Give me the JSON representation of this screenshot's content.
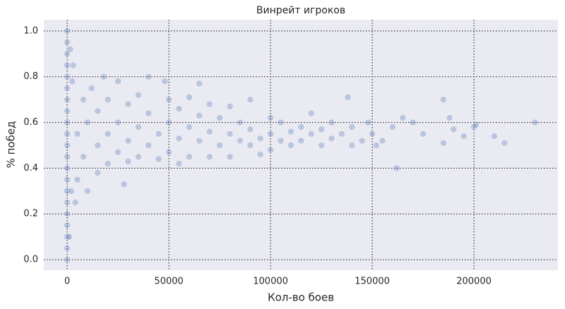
{
  "chart_data": {
    "type": "scatter",
    "title": "Винрейт игроков",
    "xlabel": "Кол-во боев",
    "ylabel": "% побед",
    "x": [
      0,
      0,
      0,
      0,
      0,
      0,
      0,
      0,
      0,
      0,
      0,
      0,
      0,
      0,
      0,
      0,
      0,
      0,
      0,
      0,
      0,
      1000,
      2000,
      3000,
      1500,
      4000,
      2500,
      5000,
      5000,
      8000,
      8000,
      10000,
      10000,
      12000,
      15000,
      15000,
      15000,
      18000,
      20000,
      20000,
      20000,
      25000,
      25000,
      25000,
      28000,
      30000,
      30000,
      30000,
      35000,
      35000,
      35000,
      40000,
      40000,
      40000,
      45000,
      45000,
      48000,
      50000,
      50000,
      50000,
      55000,
      55000,
      55000,
      60000,
      60000,
      60000,
      65000,
      65000,
      65000,
      70000,
      70000,
      70000,
      75000,
      75000,
      80000,
      80000,
      80000,
      85000,
      85000,
      90000,
      90000,
      90000,
      95000,
      95000,
      100000,
      100000,
      100000,
      105000,
      105000,
      110000,
      110000,
      115000,
      115000,
      120000,
      120000,
      125000,
      125000,
      130000,
      130000,
      135000,
      138000,
      140000,
      140000,
      145000,
      148000,
      150000,
      152000,
      155000,
      160000,
      162000,
      165000,
      170000,
      175000,
      185000,
      185000,
      188000,
      190000,
      195000,
      200000,
      201000,
      210000,
      215000,
      230000
    ],
    "y": [
      0,
      0.05,
      0.1,
      0.15,
      0.2,
      0.25,
      0.3,
      0.35,
      0.4,
      0.45,
      0.5,
      0.55,
      0.6,
      0.65,
      0.7,
      0.75,
      0.8,
      0.85,
      0.9,
      0.95,
      1.0,
      0.1,
      0.3,
      0.85,
      0.92,
      0.25,
      0.78,
      0.55,
      0.35,
      0.7,
      0.45,
      0.6,
      0.3,
      0.75,
      0.5,
      0.65,
      0.38,
      0.8,
      0.55,
      0.42,
      0.7,
      0.6,
      0.47,
      0.78,
      0.33,
      0.52,
      0.68,
      0.43,
      0.58,
      0.72,
      0.45,
      0.5,
      0.64,
      0.8,
      0.55,
      0.44,
      0.78,
      0.6,
      0.47,
      0.7,
      0.53,
      0.66,
      0.42,
      0.58,
      0.45,
      0.71,
      0.52,
      0.63,
      0.77,
      0.56,
      0.45,
      0.68,
      0.5,
      0.62,
      0.55,
      0.45,
      0.67,
      0.52,
      0.6,
      0.5,
      0.57,
      0.7,
      0.53,
      0.46,
      0.55,
      0.62,
      0.48,
      0.52,
      0.6,
      0.56,
      0.5,
      0.58,
      0.52,
      0.55,
      0.64,
      0.5,
      0.57,
      0.6,
      0.53,
      0.55,
      0.71,
      0.5,
      0.58,
      0.52,
      0.6,
      0.55,
      0.5,
      0.52,
      0.58,
      0.4,
      0.62,
      0.6,
      0.55,
      0.7,
      0.51,
      0.62,
      0.57,
      0.54,
      0.58,
      0.59,
      0.54,
      0.51,
      0.6
    ],
    "color": "#4c72b0",
    "alpha": 0.3,
    "xlim": [
      -11500,
      241300
    ],
    "ylim": [
      -0.046,
      1.049
    ],
    "xticks": [
      0,
      50000,
      100000,
      150000,
      200000
    ],
    "yticks": [
      {
        "value": 0,
        "label": "0.0"
      },
      0.2,
      0.4,
      0.6,
      0.8,
      {
        "value": 1,
        "label": "1.0"
      }
    ],
    "grid": true
  }
}
